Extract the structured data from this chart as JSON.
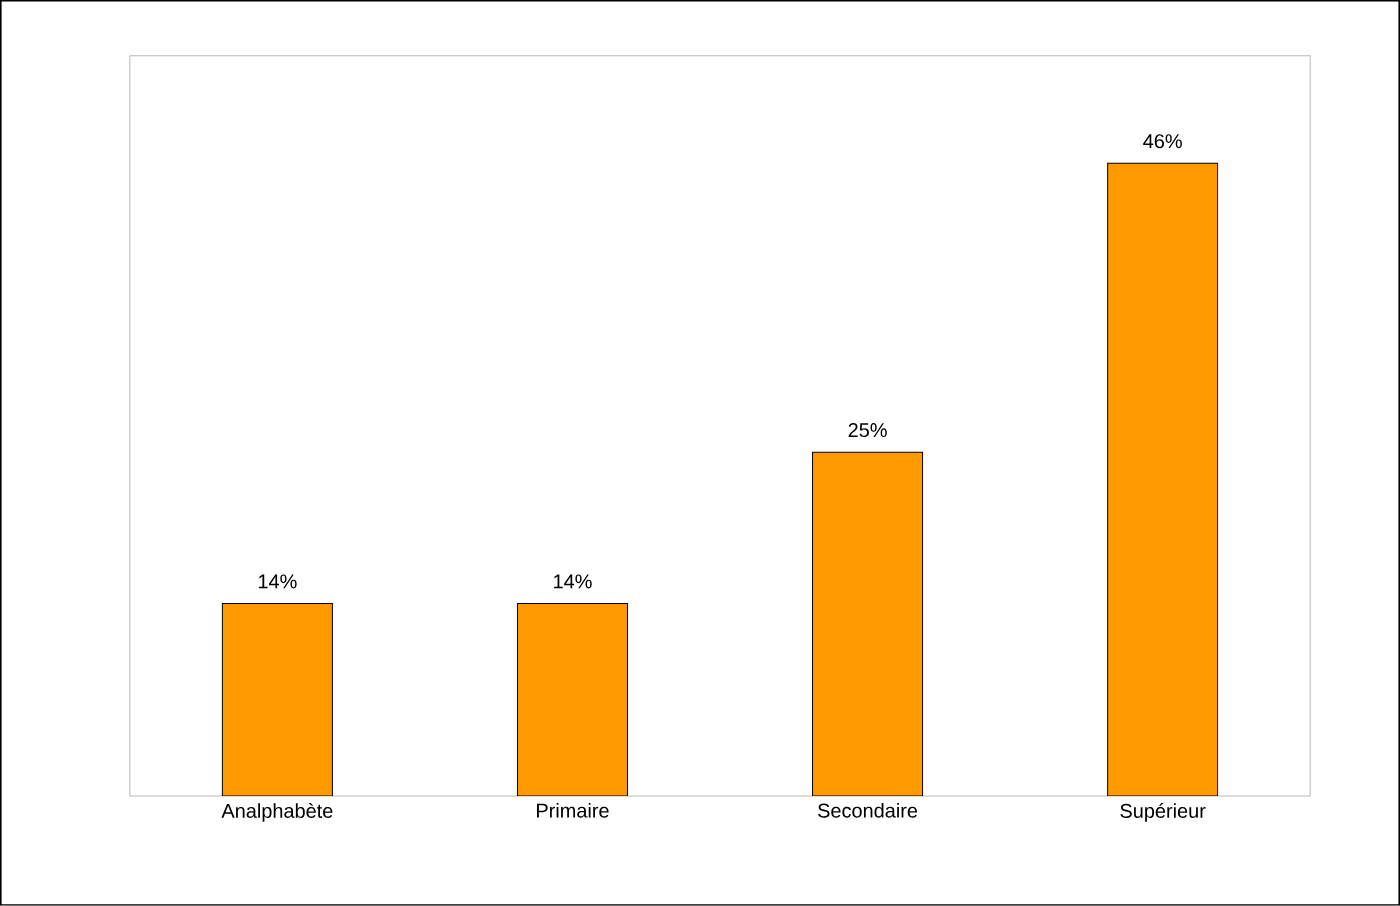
{
  "chart_data": {
    "type": "bar",
    "categories": [
      "Analphabète",
      "Primaire",
      "Secondaire",
      "Supérieur"
    ],
    "values": [
      14,
      14,
      25,
      46
    ],
    "color": "#ff9900",
    "value_labels": [
      "14%",
      "14%",
      "25%",
      "46%"
    ]
  }
}
